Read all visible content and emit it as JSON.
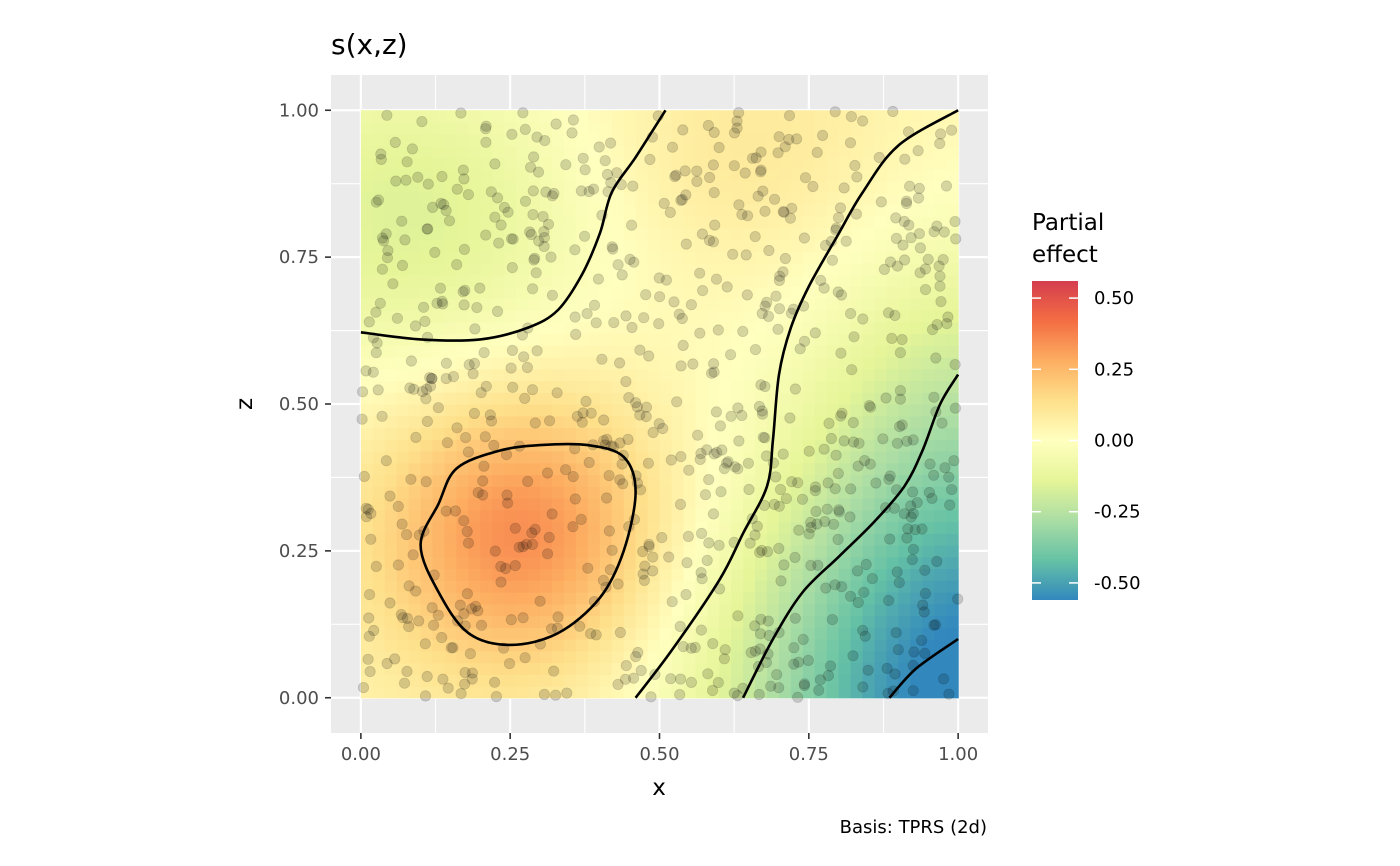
{
  "chart_data": {
    "type": "heatmap",
    "title": "s(x,z)",
    "xlabel": "x",
    "ylabel": "z",
    "caption": "Basis: TPRS (2d)",
    "xlim": [
      -0.05,
      1.05
    ],
    "ylim": [
      -0.06,
      1.06
    ],
    "x_ticks": [
      0.0,
      0.25,
      0.5,
      0.75,
      1.0
    ],
    "x_tick_labels": [
      "0.00",
      "0.25",
      "0.50",
      "0.75",
      "1.00"
    ],
    "y_ticks": [
      0.0,
      0.25,
      0.5,
      0.75,
      1.0
    ],
    "y_tick_labels": [
      "0.00",
      "0.25",
      "0.50",
      "0.75",
      "1.00"
    ],
    "grid": true,
    "panel_background": "#ebebeb",
    "legend": {
      "title_lines": [
        "Partial",
        "effect"
      ],
      "position": "right",
      "range": [
        -0.56,
        0.56
      ],
      "breaks": [
        0.5,
        0.25,
        0.0,
        -0.25,
        -0.5
      ],
      "break_labels": [
        "0.50",
        "0.25",
        "0.00",
        "-0.25",
        "-0.50"
      ],
      "palette": [
        "#3288bd",
        "#66c2a5",
        "#abdda4",
        "#e6f598",
        "#ffffbf",
        "#fee08b",
        "#fdae61",
        "#f46d43",
        "#d53e4f"
      ]
    },
    "surface": {
      "baseline": 0.04,
      "bumps": [
        {
          "cx": 0.27,
          "cz": 0.28,
          "sx": 0.17,
          "sz": 0.17,
          "amp": 0.32
        },
        {
          "cx": 1.02,
          "cz": -0.02,
          "sx": 0.28,
          "sz": 0.3,
          "amp": -0.62
        },
        {
          "cx": 0.08,
          "cz": 0.82,
          "sx": 0.24,
          "sz": 0.2,
          "amp": -0.2
        },
        {
          "cx": 1.0,
          "cz": 0.5,
          "sx": 0.17,
          "sz": 0.24,
          "amp": -0.16
        },
        {
          "cx": 0.62,
          "cz": 0.92,
          "sx": 0.2,
          "sz": 0.15,
          "amp": 0.07
        }
      ]
    },
    "contours": [
      {
        "points": [
          [
            0.0,
            0.622
          ],
          [
            0.1,
            0.61
          ],
          [
            0.2,
            0.61
          ],
          [
            0.28,
            0.63
          ],
          [
            0.33,
            0.66
          ],
          [
            0.37,
            0.72
          ],
          [
            0.4,
            0.79
          ],
          [
            0.42,
            0.86
          ],
          [
            0.46,
            0.92
          ],
          [
            0.51,
            1.0
          ]
        ]
      },
      {
        "points": [
          [
            0.46,
            0.0
          ],
          [
            0.52,
            0.08
          ],
          [
            0.6,
            0.2
          ],
          [
            0.64,
            0.28
          ],
          [
            0.68,
            0.36
          ],
          [
            0.69,
            0.44
          ],
          [
            0.7,
            0.55
          ],
          [
            0.72,
            0.63
          ],
          [
            0.75,
            0.7
          ],
          [
            0.8,
            0.79
          ],
          [
            0.84,
            0.86
          ],
          [
            0.9,
            0.94
          ],
          [
            1.0,
            1.0
          ]
        ]
      },
      {
        "points": [
          [
            0.64,
            0.0
          ],
          [
            0.69,
            0.1
          ],
          [
            0.74,
            0.18
          ],
          [
            0.8,
            0.24
          ],
          [
            0.86,
            0.3
          ],
          [
            0.91,
            0.36
          ],
          [
            0.94,
            0.42
          ],
          [
            0.97,
            0.5
          ],
          [
            1.0,
            0.55
          ]
        ]
      },
      {
        "points": [
          [
            0.885,
            0.0
          ],
          [
            0.93,
            0.05
          ],
          [
            1.0,
            0.1
          ]
        ]
      },
      {
        "closed": true,
        "points": [
          [
            0.13,
            0.33
          ],
          [
            0.16,
            0.39
          ],
          [
            0.23,
            0.42
          ],
          [
            0.3,
            0.43
          ],
          [
            0.38,
            0.43
          ],
          [
            0.44,
            0.41
          ],
          [
            0.46,
            0.35
          ],
          [
            0.44,
            0.25
          ],
          [
            0.4,
            0.17
          ],
          [
            0.33,
            0.11
          ],
          [
            0.25,
            0.09
          ],
          [
            0.18,
            0.11
          ],
          [
            0.13,
            0.18
          ],
          [
            0.1,
            0.26
          ]
        ]
      }
    ],
    "points_n": 800,
    "point_color": "#000000",
    "point_opacity": 0.16,
    "line_color": "#000000"
  }
}
